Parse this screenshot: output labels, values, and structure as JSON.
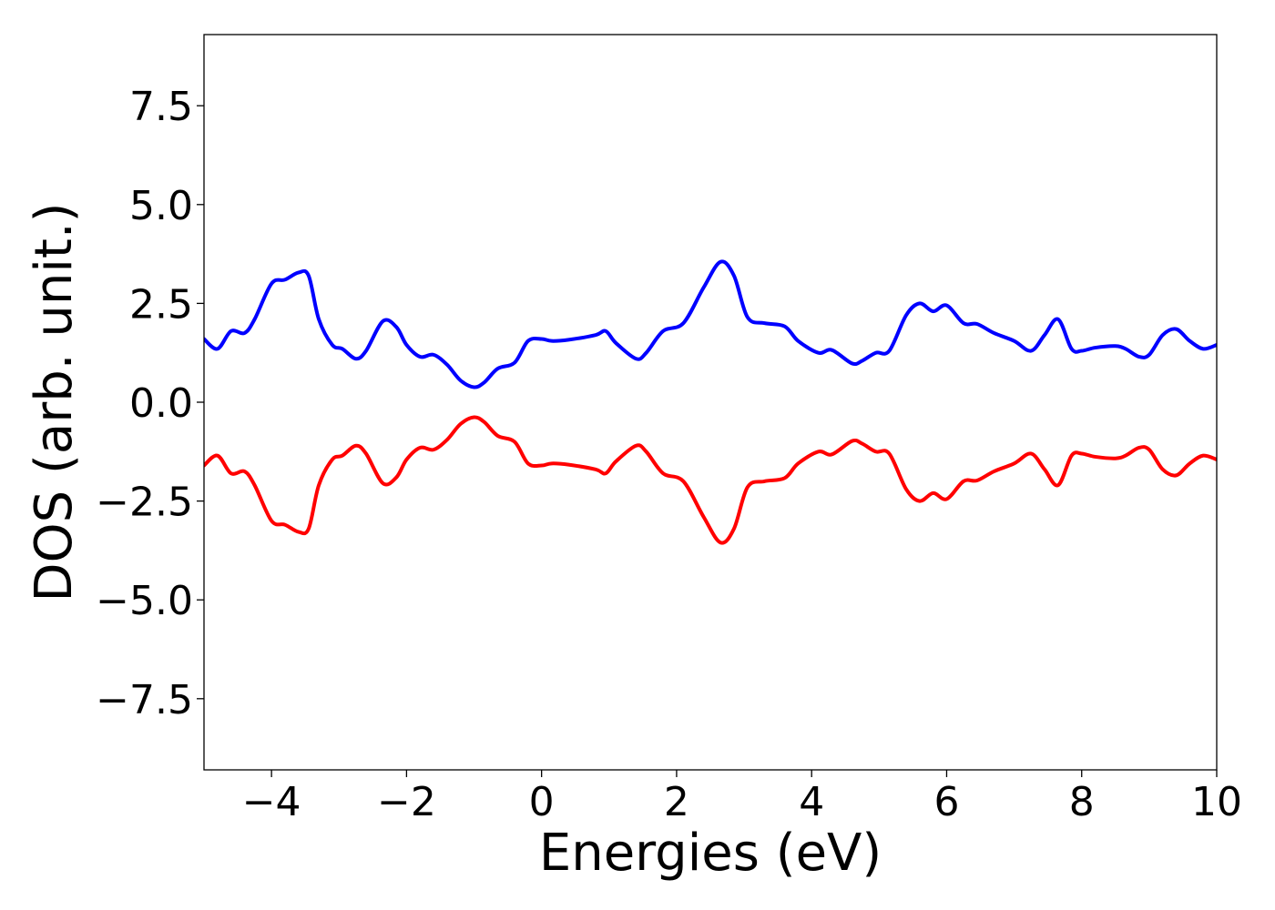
{
  "chart_data": {
    "type": "line",
    "xlabel": "Energies (eV)",
    "ylabel": "DOS (arb. unit.)",
    "xlim": [
      -5,
      10
    ],
    "ylim": [
      -9.3,
      9.3
    ],
    "x_ticks": [
      -4,
      -2,
      0,
      2,
      4,
      6,
      8,
      10
    ],
    "x_tick_labels": [
      "−4",
      "−2",
      "0",
      "2",
      "4",
      "6",
      "8",
      "10"
    ],
    "y_ticks": [
      -7.5,
      -5.0,
      -2.5,
      0.0,
      2.5,
      5.0,
      7.5
    ],
    "y_tick_labels": [
      "−7.5",
      "−5.0",
      "−2.5",
      "0.0",
      "2.5",
      "5.0",
      "7.5"
    ],
    "grid": false,
    "series": [
      {
        "color": "#0000ff",
        "x": [
          -5.0,
          -4.8,
          -4.6,
          -4.4,
          -4.25,
          -4.0,
          -3.8,
          -3.6,
          -3.45,
          -3.3,
          -3.1,
          -2.95,
          -2.75,
          -2.6,
          -2.35,
          -2.15,
          -2.0,
          -1.8,
          -1.6,
          -1.4,
          -1.2,
          -1.0,
          -0.85,
          -0.65,
          -0.4,
          -0.2,
          0.0,
          0.15,
          0.4,
          0.8,
          0.95,
          1.1,
          1.4,
          1.55,
          1.8,
          2.1,
          2.4,
          2.65,
          2.85,
          3.05,
          3.3,
          3.6,
          3.8,
          4.1,
          4.3,
          4.6,
          4.75,
          4.95,
          5.15,
          5.4,
          5.6,
          5.8,
          6.0,
          6.25,
          6.45,
          6.7,
          7.0,
          7.25,
          7.45,
          7.65,
          7.85,
          8.0,
          8.2,
          8.5,
          8.65,
          8.85,
          9.0,
          9.2,
          9.4,
          9.6,
          9.8,
          10.0
        ],
        "values": [
          1.6,
          1.35,
          1.8,
          1.75,
          2.1,
          3.0,
          3.1,
          3.28,
          3.2,
          2.1,
          1.45,
          1.35,
          1.1,
          1.3,
          2.05,
          1.9,
          1.45,
          1.15,
          1.2,
          0.95,
          0.55,
          0.38,
          0.5,
          0.85,
          1.0,
          1.55,
          1.6,
          1.55,
          1.58,
          1.7,
          1.8,
          1.5,
          1.1,
          1.25,
          1.8,
          2.0,
          2.9,
          3.55,
          3.2,
          2.15,
          2.0,
          1.92,
          1.55,
          1.25,
          1.32,
          0.98,
          1.05,
          1.25,
          1.3,
          2.2,
          2.5,
          2.3,
          2.45,
          2.0,
          1.98,
          1.75,
          1.55,
          1.3,
          1.7,
          2.1,
          1.35,
          1.3,
          1.38,
          1.42,
          1.35,
          1.15,
          1.2,
          1.7,
          1.85,
          1.55,
          1.35,
          1.45
        ]
      },
      {
        "color": "#ff0000",
        "x": [
          -5.0,
          -4.8,
          -4.6,
          -4.4,
          -4.25,
          -4.0,
          -3.8,
          -3.6,
          -3.45,
          -3.3,
          -3.1,
          -2.95,
          -2.75,
          -2.6,
          -2.35,
          -2.15,
          -2.0,
          -1.8,
          -1.6,
          -1.4,
          -1.2,
          -1.0,
          -0.85,
          -0.65,
          -0.4,
          -0.2,
          0.0,
          0.15,
          0.4,
          0.8,
          0.95,
          1.1,
          1.4,
          1.55,
          1.8,
          2.1,
          2.4,
          2.65,
          2.85,
          3.05,
          3.3,
          3.6,
          3.8,
          4.1,
          4.3,
          4.6,
          4.75,
          4.95,
          5.15,
          5.4,
          5.6,
          5.8,
          6.0,
          6.25,
          6.45,
          6.7,
          7.0,
          7.25,
          7.45,
          7.65,
          7.85,
          8.0,
          8.2,
          8.5,
          8.65,
          8.85,
          9.0,
          9.2,
          9.4,
          9.6,
          9.8,
          10.0
        ],
        "values": [
          -1.6,
          -1.35,
          -1.8,
          -1.75,
          -2.1,
          -3.0,
          -3.1,
          -3.28,
          -3.2,
          -2.1,
          -1.45,
          -1.35,
          -1.1,
          -1.3,
          -2.05,
          -1.9,
          -1.45,
          -1.15,
          -1.2,
          -0.95,
          -0.55,
          -0.38,
          -0.5,
          -0.85,
          -1.0,
          -1.55,
          -1.6,
          -1.55,
          -1.58,
          -1.7,
          -1.8,
          -1.5,
          -1.1,
          -1.25,
          -1.8,
          -2.0,
          -2.9,
          -3.55,
          -3.2,
          -2.15,
          -2.0,
          -1.92,
          -1.55,
          -1.25,
          -1.32,
          -0.98,
          -1.05,
          -1.25,
          -1.3,
          -2.2,
          -2.5,
          -2.3,
          -2.45,
          -2.0,
          -1.98,
          -1.75,
          -1.55,
          -1.3,
          -1.7,
          -2.1,
          -1.35,
          -1.3,
          -1.38,
          -1.42,
          -1.35,
          -1.15,
          -1.2,
          -1.7,
          -1.85,
          -1.55,
          -1.35,
          -1.45
        ]
      }
    ]
  }
}
